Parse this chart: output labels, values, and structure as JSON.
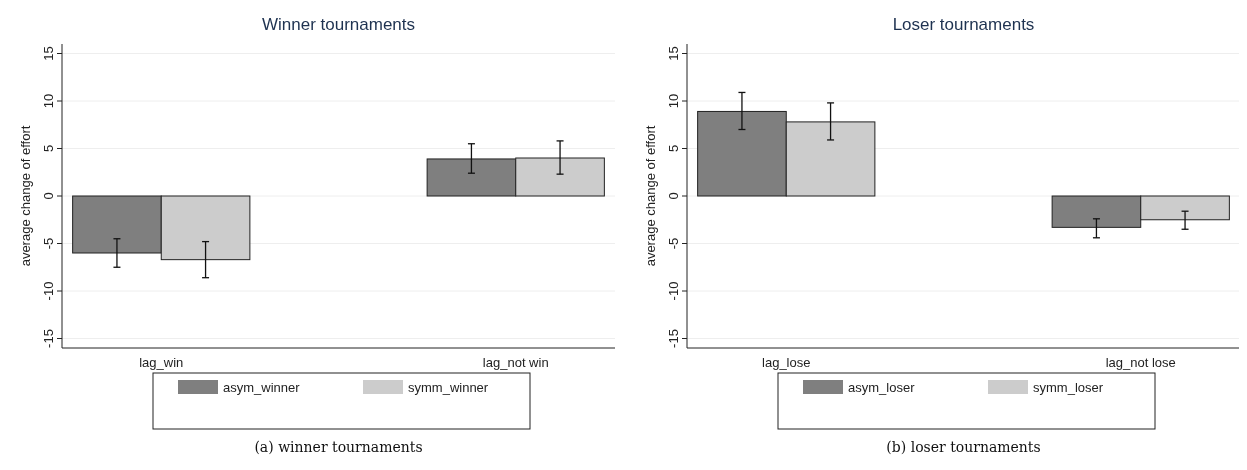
{
  "chart_data": [
    {
      "type": "bar",
      "title": "Winner tournaments",
      "ylabel": "average change of effort",
      "categories": [
        "lag_win",
        "lag_not win"
      ],
      "series": [
        {
          "name": "asym_winner",
          "color": "#7f7f7f",
          "values": [
            -6,
            3.9
          ],
          "errors": [
            [
              -7.5,
              -4.5
            ],
            [
              2.4,
              5.5
            ]
          ]
        },
        {
          "name": "symm_winner",
          "color": "#cccccc",
          "values": [
            -6.7,
            4.0
          ],
          "errors": [
            [
              -8.6,
              -4.8
            ],
            [
              2.3,
              5.8
            ]
          ]
        }
      ],
      "ylim": [
        -16,
        16
      ],
      "yticks": [
        -15,
        -10,
        -5,
        0,
        5,
        10,
        15
      ],
      "grid": "y",
      "legend": "bottom",
      "annotations": [
        "(a) winner tournaments"
      ]
    },
    {
      "type": "bar",
      "title": "Loser tournaments",
      "ylabel": "average change of effort",
      "categories": [
        "lag_lose",
        "lag_not lose"
      ],
      "series": [
        {
          "name": "asym_loser",
          "color": "#7f7f7f",
          "values": [
            8.9,
            -3.3
          ],
          "errors": [
            [
              7.0,
              10.9
            ],
            [
              -4.4,
              -2.4
            ]
          ]
        },
        {
          "name": "symm_loser",
          "color": "#cccccc",
          "values": [
            7.8,
            -2.5
          ],
          "errors": [
            [
              5.9,
              9.8
            ],
            [
              -3.5,
              -1.6
            ]
          ]
        }
      ],
      "ylim": [
        -16,
        16
      ],
      "yticks": [
        -15,
        -10,
        -5,
        0,
        5,
        10,
        15
      ],
      "grid": "y",
      "legend": "bottom",
      "annotations": [
        "(b) loser tournaments"
      ]
    }
  ]
}
